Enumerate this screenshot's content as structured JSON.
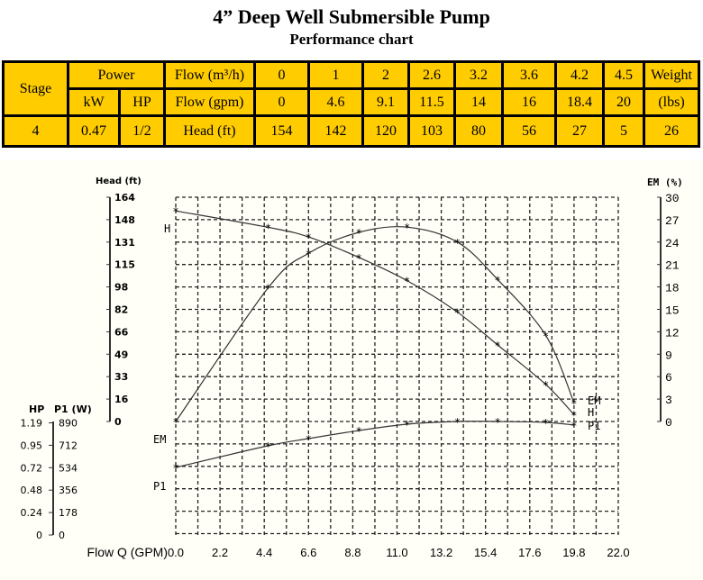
{
  "title": "4” Deep Well Submersible Pump",
  "subtitle": "Performance chart",
  "table": {
    "stage_label": "Stage",
    "power_label": "Power",
    "kw_label": "kW",
    "hp_label": "HP",
    "flow_m3h_label": "Flow (m³/h)",
    "flow_gpm_label": "Flow (gpm)",
    "head_label": "Head (ft)",
    "weight_label": "Weight",
    "weight_unit": "(lbs)",
    "flow_m3h": [
      "0",
      "1",
      "2",
      "2.6",
      "3.2",
      "3.6",
      "4.2",
      "4.5"
    ],
    "flow_gpm": [
      "0",
      "4.6",
      "9.1",
      "11.5",
      "14",
      "16",
      "18.4",
      "20"
    ],
    "head_ft": [
      "154",
      "142",
      "120",
      "103",
      "80",
      "56",
      "27",
      "5"
    ],
    "stage": "4",
    "kw": "0.47",
    "hp": "1/2",
    "weight": "26"
  },
  "chart_data": {
    "type": "line",
    "xlabel": "Flow Q (GPM)",
    "x_ticks": [
      "0.0",
      "2.2",
      "4.4",
      "6.6",
      "8.8",
      "11.0",
      "13.2",
      "15.4",
      "17.6",
      "19.8",
      "22.0"
    ],
    "xlim": [
      0,
      22
    ],
    "head_axis": {
      "label": "Head (ft)",
      "ticks": [
        "0",
        "16",
        "33",
        "49",
        "66",
        "82",
        "98",
        "115",
        "131",
        "148",
        "164"
      ],
      "range": [
        0,
        164
      ]
    },
    "em_axis": {
      "label": "EM (%)",
      "ticks": [
        "0",
        "3",
        "6",
        "9",
        "12",
        "15",
        "18",
        "21",
        "24",
        "27",
        "30"
      ],
      "range": [
        0,
        30
      ]
    },
    "hp_axis": {
      "label": "HP",
      "ticks": [
        "0",
        "0.24",
        "0.48",
        "0.72",
        "0.95",
        "1.19"
      ]
    },
    "p1_axis": {
      "label": "P1 (W)",
      "ticks": [
        "0",
        "178",
        "356",
        "534",
        "712",
        "890"
      ],
      "range": [
        0,
        890
      ]
    },
    "series": [
      {
        "name": "H",
        "axis": "head",
        "x": [
          0,
          4.6,
          6.6,
          9.1,
          11.5,
          14,
          16,
          18.4,
          19.8
        ],
        "y": [
          154,
          142,
          135,
          120,
          103,
          80,
          56,
          27,
          5
        ]
      },
      {
        "name": "EM",
        "axis": "em",
        "x": [
          0,
          4.6,
          6.6,
          9.1,
          11.5,
          14,
          16,
          18.4,
          19.8
        ],
        "y": [
          0,
          17.9,
          22.5,
          25.3,
          26,
          24,
          19,
          11.5,
          2.5
        ]
      },
      {
        "name": "P1",
        "axis": "p1",
        "x": [
          0,
          4.6,
          6.6,
          9.1,
          11.5,
          14,
          16,
          18.4,
          19.8
        ],
        "y": [
          530,
          700,
          756,
          819,
          869,
          890,
          890,
          883,
          862
        ]
      }
    ]
  }
}
